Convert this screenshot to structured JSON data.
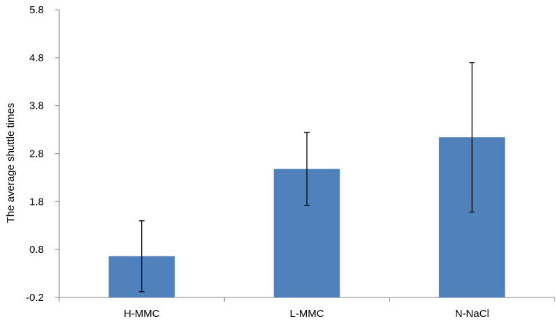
{
  "chart_data": {
    "type": "bar",
    "title": "",
    "xlabel": "",
    "ylabel": "The average shuttle times",
    "categories": [
      "H-MMC",
      "L-MMC",
      "N-NaCl"
    ],
    "values": [
      0.66,
      2.48,
      3.14
    ],
    "error": [
      0.74,
      0.76,
      1.56
    ],
    "ylim": [
      -0.2,
      5.8
    ],
    "yticks": [
      -0.2,
      0.8,
      1.8,
      2.8,
      3.8,
      4.8,
      5.8
    ],
    "ytick_labels": [
      "-0.2",
      "0.8",
      "1.8",
      "2.8",
      "3.8",
      "4.8",
      "5.8"
    ],
    "bar_color": "#4F81BD",
    "grid": false,
    "legend": "none"
  }
}
